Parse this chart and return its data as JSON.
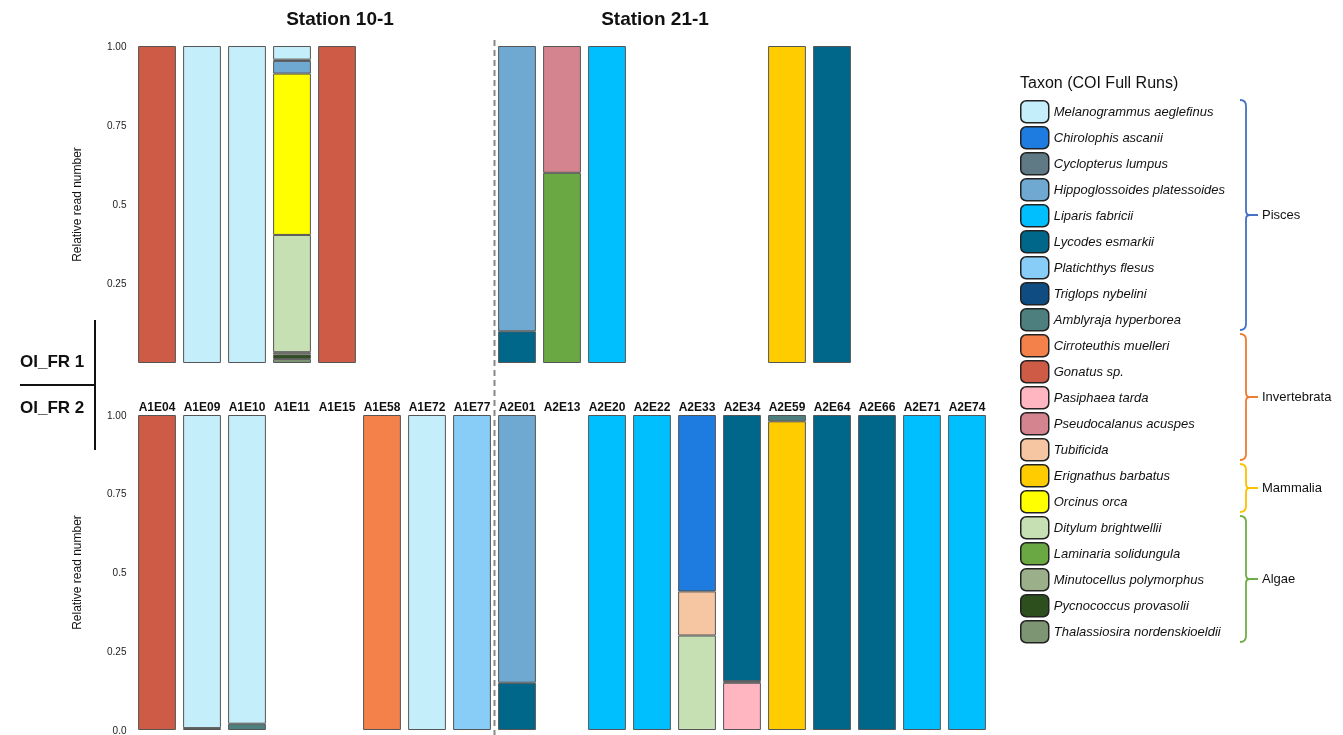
{
  "chart_data": [
    {
      "type": "bar",
      "stacked": true,
      "legend": "right",
      "legend_title": "Taxon (COI Full Runs)",
      "ylabel": "Relative read number",
      "annotations": [
        "Station 10-1",
        "Station 21-1",
        "OI_FR 1",
        "OI_FR 2",
        "Pisces",
        "Invertebrata",
        "Mammalia",
        "Algae"
      ],
      "categories": [
        "A1E04",
        "A1E09",
        "A1E10",
        "A1E11",
        "A1E15",
        "A1E58",
        "A1E72",
        "A1E77",
        "A2E01",
        "A2E13",
        "A2E20",
        "A2E22",
        "A2E33",
        "A2E34",
        "A2E59",
        "A2E64",
        "A2E66",
        "A2E71",
        "A2E74"
      ],
      "ylim": [
        0,
        1
      ],
      "yticks": [
        {
          "value": 0.25,
          "label": "0.25"
        },
        {
          "value": 0.5,
          "label": "0.5"
        },
        {
          "value": 0.75,
          "label": "0.75"
        },
        {
          "value": 1,
          "label": "1.00"
        }
      ],
      "series": [
        {
          "name": "Thalassiosira nordenskioeldii",
          "color": "#7d9572",
          "values": [
            null,
            null,
            null,
            0.013,
            null,
            null,
            null,
            null,
            null,
            null,
            null,
            null,
            null,
            null,
            null,
            null,
            null,
            null,
            null
          ]
        },
        {
          "name": "Pycnococcus provasolii",
          "color": "#2d4f1e",
          "values": [
            null,
            null,
            null,
            0.014,
            null,
            null,
            null,
            null,
            null,
            null,
            null,
            null,
            null,
            null,
            null,
            null,
            null,
            null,
            null
          ]
        },
        {
          "name": "Minutocellus polymorphus",
          "color": "#9bb08a",
          "values": [
            null,
            null,
            null,
            0.007,
            null,
            null,
            null,
            null,
            null,
            null,
            null,
            null,
            null,
            null,
            null,
            null,
            null,
            null,
            null
          ]
        },
        {
          "name": "Laminaria solidungula",
          "color": "#6aa843",
          "values": [
            null,
            null,
            null,
            null,
            null,
            null,
            null,
            null,
            null,
            0.6,
            null,
            null,
            null,
            null,
            null,
            null,
            null,
            null,
            null
          ]
        },
        {
          "name": "Ditylum brightwellii",
          "color": "#c6e0b4",
          "values": [
            null,
            null,
            null,
            0.37,
            null,
            null,
            null,
            null,
            null,
            null,
            null,
            null,
            null,
            null,
            null,
            null,
            null,
            null,
            null
          ]
        },
        {
          "name": "Orcinus orca",
          "color": "#ffff00",
          "values": [
            null,
            null,
            null,
            0.509,
            null,
            null,
            null,
            null,
            null,
            null,
            null,
            null,
            null,
            null,
            null,
            null,
            null,
            null,
            null
          ]
        },
        {
          "name": "Erignathus barbatus",
          "color": "#ffcc00",
          "values": [
            null,
            null,
            null,
            null,
            null,
            null,
            null,
            null,
            null,
            null,
            null,
            null,
            null,
            null,
            1,
            null,
            null,
            null,
            null
          ]
        },
        {
          "name": "Tubificida",
          "color": "#f6c6a3",
          "values": [
            null,
            null,
            null,
            null,
            null,
            null,
            null,
            null,
            null,
            null,
            null,
            null,
            null,
            null,
            null,
            null,
            null,
            null,
            null
          ]
        },
        {
          "name": "Pseudocalanus acuspes",
          "color": "#d4848f",
          "values": [
            null,
            null,
            null,
            null,
            null,
            null,
            null,
            null,
            null,
            0.4,
            null,
            null,
            null,
            null,
            null,
            null,
            null,
            null,
            null
          ]
        },
        {
          "name": "Pasiphaea tarda",
          "color": "#ffb6c1",
          "values": [
            null,
            null,
            null,
            null,
            null,
            null,
            null,
            null,
            null,
            null,
            null,
            null,
            null,
            null,
            null,
            null,
            null,
            null,
            null
          ]
        },
        {
          "name": "Gonatus sp.",
          "color": "#cd5b45",
          "values": [
            1,
            null,
            null,
            null,
            1,
            null,
            null,
            null,
            null,
            null,
            null,
            null,
            null,
            null,
            null,
            null,
            null,
            null,
            null
          ]
        },
        {
          "name": "Cirroteuthis muelleri",
          "color": "#f4804a",
          "values": [
            null,
            null,
            null,
            null,
            null,
            null,
            null,
            null,
            null,
            null,
            null,
            null,
            null,
            null,
            null,
            null,
            null,
            null,
            null
          ]
        },
        {
          "name": "Amblyraja hyperborea",
          "color": "#4d7f7f",
          "values": [
            null,
            null,
            null,
            null,
            null,
            null,
            null,
            null,
            null,
            null,
            null,
            null,
            null,
            null,
            null,
            null,
            null,
            null,
            null
          ]
        },
        {
          "name": "Triglops nybelini",
          "color": "#0f4c81",
          "values": [
            null,
            null,
            null,
            null,
            null,
            null,
            null,
            null,
            null,
            null,
            null,
            null,
            null,
            null,
            null,
            null,
            null,
            null,
            null
          ]
        },
        {
          "name": "Platichthys flesus",
          "color": "#87cdf7",
          "values": [
            null,
            null,
            null,
            null,
            null,
            null,
            null,
            null,
            null,
            null,
            null,
            null,
            null,
            null,
            null,
            null,
            null,
            null,
            null
          ]
        },
        {
          "name": "Lycodes esmarkii",
          "color": "#00678a",
          "values": [
            null,
            null,
            null,
            null,
            null,
            null,
            null,
            null,
            0.1,
            null,
            null,
            null,
            null,
            null,
            null,
            1,
            null,
            null,
            null
          ]
        },
        {
          "name": "Liparis fabricii",
          "color": "#00bfff",
          "values": [
            null,
            null,
            null,
            null,
            null,
            null,
            null,
            null,
            null,
            null,
            1,
            null,
            null,
            null,
            null,
            null,
            null,
            null,
            null
          ]
        },
        {
          "name": "Hippoglossoides platessoides",
          "color": "#6fa8d0",
          "values": [
            null,
            null,
            null,
            0.04,
            null,
            null,
            null,
            null,
            0.9,
            null,
            null,
            null,
            null,
            null,
            null,
            null,
            null,
            null,
            null
          ]
        },
        {
          "name": "Cyclopterus lumpus",
          "color": "#5f7a84",
          "values": [
            null,
            null,
            null,
            0.004,
            null,
            null,
            null,
            null,
            null,
            null,
            null,
            null,
            null,
            null,
            null,
            null,
            null,
            null,
            null
          ]
        },
        {
          "name": "Chirolophis ascanii",
          "color": "#1e7be0",
          "values": [
            null,
            null,
            null,
            null,
            null,
            null,
            null,
            null,
            null,
            null,
            null,
            null,
            null,
            null,
            null,
            null,
            null,
            null,
            null
          ]
        },
        {
          "name": "Melanogrammus aeglefinus",
          "color": "#c5eefb",
          "values": [
            null,
            1,
            1,
            0.043,
            null,
            null,
            null,
            null,
            null,
            null,
            null,
            null,
            null,
            null,
            null,
            null,
            null,
            null,
            null
          ]
        }
      ]
    },
    {
      "type": "bar",
      "stacked": true,
      "ylabel": "Relative read number",
      "tick_labels": "y",
      "categories": [
        null,
        null,
        null,
        null,
        null,
        null,
        null,
        null,
        null,
        null,
        null,
        null,
        null,
        null,
        null,
        null,
        null,
        null,
        null
      ],
      "ylim": [
        0,
        1
      ],
      "yticks": [
        {
          "value": 0,
          "label": "0.0"
        },
        {
          "value": 0.25,
          "label": "0.25"
        },
        {
          "value": 0.5,
          "label": "0.5"
        },
        {
          "value": 0.75,
          "label": "0.75"
        },
        {
          "value": 1,
          "label": "1.00"
        }
      ],
      "series": [
        {
          "color": "#c6e0b4",
          "values": [
            null,
            null,
            null,
            null,
            null,
            null,
            null,
            null,
            null,
            null,
            null,
            null,
            0.3,
            null,
            null,
            null,
            null,
            null,
            null
          ]
        },
        {
          "color": "#ffcc00",
          "values": [
            null,
            null,
            null,
            null,
            null,
            null,
            null,
            null,
            null,
            null,
            null,
            null,
            null,
            null,
            0.98,
            null,
            null,
            null,
            null
          ]
        },
        {
          "color": "#f6c6a3",
          "values": [
            null,
            null,
            null,
            null,
            null,
            null,
            null,
            null,
            null,
            null,
            null,
            null,
            0.14,
            null,
            null,
            null,
            null,
            null,
            null
          ]
        },
        {
          "color": "#ffb6c1",
          "values": [
            null,
            null,
            null,
            null,
            null,
            null,
            null,
            null,
            null,
            null,
            null,
            null,
            null,
            0.15,
            null,
            null,
            null,
            null,
            null
          ]
        },
        {
          "color": "#cd5b45",
          "values": [
            1,
            null,
            null,
            null,
            null,
            null,
            null,
            null,
            null,
            null,
            null,
            null,
            null,
            null,
            null,
            null,
            null,
            null,
            null
          ]
        },
        {
          "color": "#f4804a",
          "values": [
            null,
            null,
            null,
            null,
            null,
            1,
            null,
            null,
            null,
            null,
            null,
            null,
            null,
            null,
            null,
            null,
            null,
            null,
            null
          ]
        },
        {
          "color": "#4d7f7f",
          "values": [
            null,
            0.006,
            0.02,
            null,
            null,
            null,
            null,
            null,
            null,
            null,
            null,
            null,
            null,
            null,
            0.02,
            null,
            null,
            null,
            null
          ]
        },
        {
          "color": "#0f4c81",
          "values": [
            null,
            null,
            null,
            null,
            null,
            null,
            null,
            null,
            null,
            null,
            null,
            null,
            null,
            0.005,
            null,
            null,
            null,
            null,
            null
          ]
        },
        {
          "color": "#87cdf7",
          "values": [
            null,
            null,
            null,
            null,
            null,
            null,
            null,
            1,
            null,
            null,
            null,
            null,
            null,
            null,
            null,
            null,
            null,
            null,
            null
          ]
        },
        {
          "color": "#00678a",
          "values": [
            null,
            null,
            null,
            null,
            null,
            null,
            null,
            null,
            0.15,
            null,
            null,
            null,
            null,
            0.845,
            null,
            1,
            1,
            null,
            null
          ]
        },
        {
          "color": "#00bfff",
          "values": [
            null,
            null,
            null,
            null,
            null,
            null,
            null,
            null,
            null,
            null,
            1,
            1,
            null,
            null,
            null,
            null,
            null,
            1,
            1
          ]
        },
        {
          "color": "#6fa8d0",
          "values": [
            null,
            null,
            null,
            null,
            null,
            null,
            null,
            null,
            0.85,
            null,
            null,
            null,
            null,
            null,
            null,
            null,
            null,
            null,
            null
          ]
        },
        {
          "color": "#1e7be0",
          "values": [
            null,
            null,
            null,
            null,
            null,
            null,
            null,
            null,
            null,
            null,
            null,
            null,
            0.56,
            null,
            null,
            null,
            null,
            null,
            null
          ]
        },
        {
          "color": "#c5eefb",
          "values": [
            null,
            0.994,
            0.98,
            null,
            null,
            null,
            1,
            null,
            null,
            null,
            null,
            null,
            null,
            null,
            null,
            null,
            null,
            null,
            null
          ]
        }
      ]
    }
  ]
}
